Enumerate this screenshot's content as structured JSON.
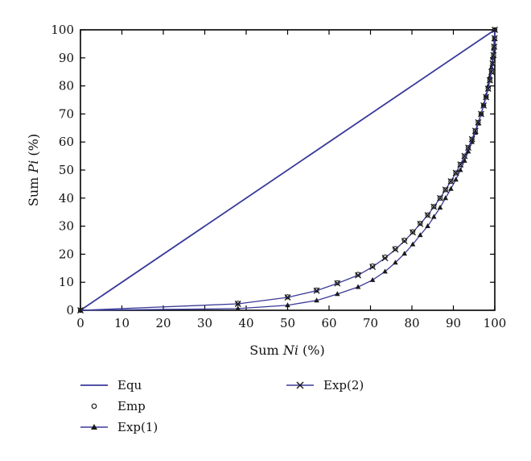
{
  "chart_data": {
    "type": "line",
    "xlabel_parts": [
      "Sum ",
      "Ni",
      " (%)"
    ],
    "ylabel_parts": [
      "Sum ",
      "Pi",
      " (%)"
    ],
    "xlim": [
      0,
      100
    ],
    "ylim": [
      0,
      100
    ],
    "xticks": [
      "0",
      "10",
      "20",
      "30",
      "40",
      "50",
      "60",
      "70",
      "80",
      "90",
      "100"
    ],
    "yticks": [
      "0",
      "10",
      "20",
      "30",
      "40",
      "50",
      "60",
      "70",
      "80",
      "90",
      "100"
    ],
    "grid": false,
    "legend_position": "bottom",
    "colors": {
      "line": "#3a3a9a",
      "marker": "#1a1a1a",
      "axis": "#000000"
    },
    "series": [
      {
        "name": "Equ",
        "marker": "none",
        "points": [
          [
            0,
            0
          ],
          [
            100,
            100
          ]
        ]
      },
      {
        "name": "Emp",
        "marker": "circle",
        "points": [
          [
            0,
            0
          ],
          [
            38,
            2.5
          ],
          [
            50,
            4.8
          ],
          [
            57,
            7.2
          ],
          [
            62,
            9.8
          ],
          [
            67,
            12.8
          ],
          [
            70.5,
            15.8
          ],
          [
            73.5,
            19
          ],
          [
            76,
            22
          ],
          [
            78.2,
            25
          ],
          [
            80.2,
            28
          ],
          [
            82,
            31
          ],
          [
            83.8,
            34
          ],
          [
            85.3,
            37
          ],
          [
            86.8,
            40
          ],
          [
            88.1,
            43
          ],
          [
            89.4,
            46
          ],
          [
            90.6,
            49
          ],
          [
            91.7,
            52
          ],
          [
            92.7,
            55
          ],
          [
            93.6,
            58
          ],
          [
            94.5,
            61
          ],
          [
            95.3,
            64
          ],
          [
            96,
            67
          ],
          [
            96.7,
            70
          ],
          [
            97.3,
            73
          ],
          [
            97.9,
            76
          ],
          [
            98.4,
            79
          ],
          [
            98.8,
            82
          ],
          [
            99.2,
            85
          ],
          [
            99.5,
            88
          ],
          [
            99.7,
            91
          ],
          [
            99.85,
            94
          ],
          [
            99.95,
            97
          ],
          [
            100,
            100
          ]
        ]
      },
      {
        "name": "Exp(1)",
        "marker": "triangle",
        "points": [
          [
            0,
            0
          ],
          [
            38,
            0.6
          ],
          [
            50,
            1.8
          ],
          [
            57,
            3.5
          ],
          [
            62,
            5.8
          ],
          [
            67,
            8.3
          ],
          [
            70.5,
            10.8
          ],
          [
            73.5,
            13.8
          ],
          [
            76,
            17
          ],
          [
            78.2,
            20.2
          ],
          [
            80.2,
            23.5
          ],
          [
            82,
            26.8
          ],
          [
            83.8,
            30
          ],
          [
            85.3,
            33.3
          ],
          [
            86.8,
            36.6
          ],
          [
            88.1,
            40
          ],
          [
            89.4,
            43.3
          ],
          [
            90.6,
            46.6
          ],
          [
            91.7,
            50
          ],
          [
            92.7,
            53.3
          ],
          [
            93.6,
            56.6
          ],
          [
            94.5,
            60
          ],
          [
            95.3,
            63.3
          ],
          [
            96,
            66.6
          ],
          [
            96.7,
            70
          ],
          [
            97.3,
            73.3
          ],
          [
            97.9,
            76.6
          ],
          [
            98.4,
            80
          ],
          [
            98.8,
            83.3
          ],
          [
            99.2,
            86.6
          ],
          [
            99.5,
            90
          ],
          [
            99.7,
            93.3
          ],
          [
            99.85,
            96.6
          ],
          [
            100,
            100
          ]
        ]
      },
      {
        "name": "Exp(2)",
        "marker": "cross",
        "points": [
          [
            0,
            0
          ],
          [
            38,
            2.3
          ],
          [
            50,
            4.6
          ],
          [
            57,
            7
          ],
          [
            62,
            9.6
          ],
          [
            67,
            12.5
          ],
          [
            70.5,
            15.5
          ],
          [
            73.5,
            18.6
          ],
          [
            76,
            21.7
          ],
          [
            78.2,
            24.7
          ],
          [
            80.2,
            27.8
          ],
          [
            82,
            30.8
          ],
          [
            83.8,
            33.9
          ],
          [
            85.3,
            36.9
          ],
          [
            86.8,
            40
          ],
          [
            88.1,
            43
          ],
          [
            89.4,
            46
          ],
          [
            90.6,
            49
          ],
          [
            91.7,
            52
          ],
          [
            92.7,
            55
          ],
          [
            93.6,
            58
          ],
          [
            94.5,
            61
          ],
          [
            95.3,
            64
          ],
          [
            96,
            67
          ],
          [
            96.7,
            70
          ],
          [
            97.3,
            73
          ],
          [
            97.9,
            76
          ],
          [
            98.4,
            79
          ],
          [
            98.8,
            82
          ],
          [
            99.2,
            85
          ],
          [
            99.5,
            88
          ],
          [
            99.7,
            91
          ],
          [
            99.85,
            94
          ],
          [
            99.95,
            97
          ],
          [
            100,
            100
          ]
        ]
      }
    ]
  }
}
